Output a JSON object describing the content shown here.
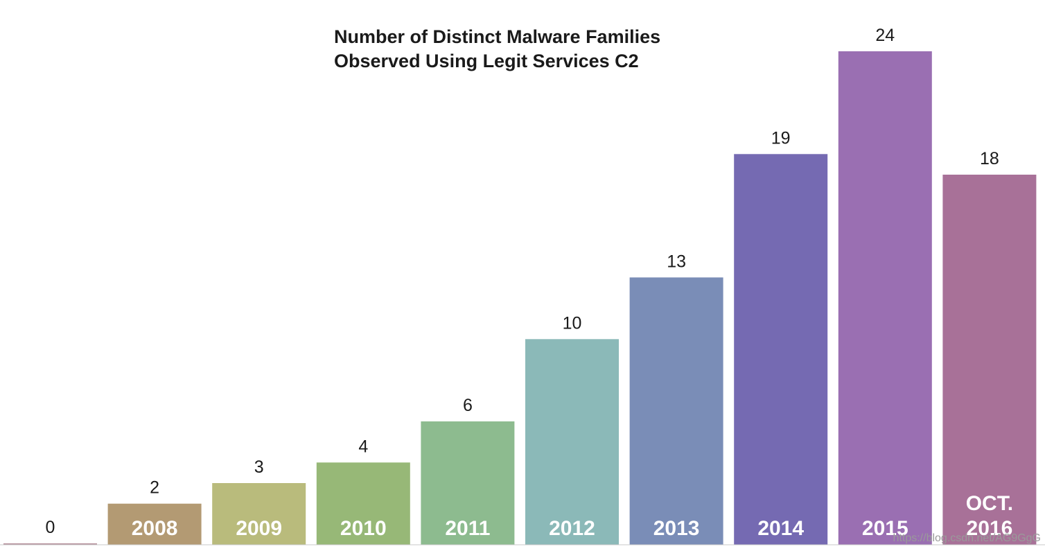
{
  "chart_data": {
    "type": "bar",
    "title": "Number of Distinct Malware Families Observed Using Legit Services C2",
    "title_lines": [
      "Number of Distinct Malware Families",
      "Observed Using Legit Services C2"
    ],
    "categories": [
      "",
      "2008",
      "2009",
      "2010",
      "2011",
      "2012",
      "2013",
      "2014",
      "2015",
      "OCT. 2016"
    ],
    "category_lines": [
      [
        ""
      ],
      [
        "2008"
      ],
      [
        "2009"
      ],
      [
        "2010"
      ],
      [
        "2011"
      ],
      [
        "2012"
      ],
      [
        "2013"
      ],
      [
        "2014"
      ],
      [
        "2015"
      ],
      [
        "OCT.",
        "2016"
      ]
    ],
    "values": [
      0,
      2,
      3,
      4,
      6,
      10,
      13,
      19,
      24,
      18
    ],
    "value_labels": [
      "0",
      "2",
      "3",
      "4",
      "6",
      "10",
      "13",
      "19",
      "24",
      "18"
    ],
    "colors": [
      "#b58e9a",
      "#b39a73",
      "#b9bb7c",
      "#97b877",
      "#8dbb8f",
      "#8bb9b8",
      "#7a8db7",
      "#756ab2",
      "#9a6fb2",
      "#a87198"
    ],
    "xlabel": "",
    "ylabel": "",
    "ylim": [
      0,
      24
    ],
    "grid": false,
    "legend": "none"
  },
  "watermark": "https://blog.csdn.net/AG9GgG"
}
